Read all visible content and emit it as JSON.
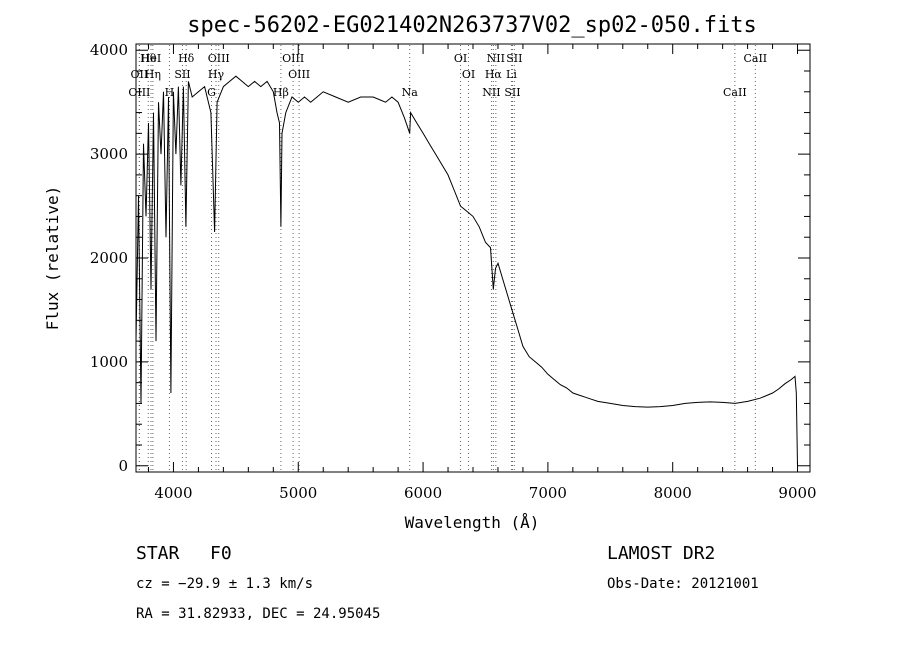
{
  "chart_data": {
    "type": "line",
    "title": "spec-56202-EG021402N263737V02_sp02-050.fits",
    "xlabel": "Wavelength (Å)",
    "ylabel": "Flux (relative)",
    "xlim": [
      3700,
      9100
    ],
    "ylim": [
      -60,
      4060
    ],
    "xticks": [
      4000,
      5000,
      6000,
      7000,
      8000,
      9000
    ],
    "yticks": [
      0,
      1000,
      2000,
      3000,
      4000
    ],
    "grid": false,
    "series": [
      {
        "color": "#000000",
        "x": [
          3700,
          3720,
          3740,
          3760,
          3780,
          3800,
          3820,
          3840,
          3860,
          3880,
          3900,
          3920,
          3940,
          3960,
          3980,
          4000,
          4020,
          4040,
          4060,
          4080,
          4100,
          4120,
          4150,
          4200,
          4250,
          4300,
          4330,
          4340,
          4350,
          4400,
          4450,
          4500,
          4550,
          4600,
          4650,
          4700,
          4750,
          4800,
          4830,
          4850,
          4861,
          4870,
          4900,
          4950,
          5000,
          5050,
          5100,
          5150,
          5200,
          5300,
          5400,
          5500,
          5600,
          5700,
          5750,
          5800,
          5850,
          5893,
          5900,
          5950,
          6000,
          6050,
          6100,
          6150,
          6200,
          6250,
          6300,
          6350,
          6400,
          6450,
          6500,
          6540,
          6563,
          6580,
          6600,
          6650,
          6700,
          6750,
          6800,
          6850,
          6900,
          6950,
          7000,
          7050,
          7100,
          7150,
          7200,
          7250,
          7300,
          7350,
          7400,
          7500,
          7600,
          7700,
          7800,
          7900,
          8000,
          8100,
          8200,
          8300,
          8400,
          8500,
          8600,
          8700,
          8800,
          8850,
          8900,
          8950,
          8980,
          8990,
          9000
        ],
        "y": [
          1200,
          2600,
          600,
          3100,
          2400,
          3300,
          1700,
          3400,
          1200,
          3500,
          3000,
          3600,
          2200,
          3550,
          700,
          3600,
          3000,
          3650,
          2700,
          3650,
          2300,
          3700,
          3550,
          3600,
          3650,
          3400,
          2250,
          2900,
          3500,
          3650,
          3700,
          3750,
          3700,
          3650,
          3700,
          3650,
          3700,
          3600,
          3400,
          3300,
          2300,
          3200,
          3400,
          3550,
          3500,
          3550,
          3500,
          3550,
          3600,
          3550,
          3500,
          3550,
          3550,
          3500,
          3550,
          3500,
          3350,
          3200,
          3400,
          3300,
          3200,
          3100,
          3000,
          2900,
          2800,
          2650,
          2500,
          2450,
          2400,
          2300,
          2150,
          2100,
          1700,
          1900,
          1950,
          1750,
          1550,
          1350,
          1150,
          1050,
          1000,
          950,
          880,
          830,
          780,
          750,
          700,
          680,
          660,
          640,
          620,
          600,
          580,
          570,
          565,
          570,
          580,
          600,
          610,
          615,
          610,
          600,
          620,
          650,
          700,
          740,
          790,
          830,
          860,
          700,
          0
        ]
      }
    ],
    "line_markers": [
      {
        "label": "Hθ",
        "x": 3798
      },
      {
        "label": "OII",
        "x": 3727
      },
      {
        "label": "OIII",
        "x": 3727
      },
      {
        "label": "HeI",
        "x": 3820
      },
      {
        "label": "Hη",
        "x": 3835
      },
      {
        "label": "H",
        "x": 3968
      },
      {
        "label": "Hδ",
        "x": 4102
      },
      {
        "label": "SII",
        "x": 4072
      },
      {
        "label": "G",
        "x": 4305
      },
      {
        "label": "OIII",
        "x": 4363
      },
      {
        "label": "Hγ",
        "x": 4341
      },
      {
        "label": "Hβ",
        "x": 4861
      },
      {
        "label": "OIII",
        "x": 4959
      },
      {
        "label": "OIII",
        "x": 5007
      },
      {
        "label": "Na",
        "x": 5893
      },
      {
        "label": "OI",
        "x": 6300
      },
      {
        "label": "OI",
        "x": 6364
      },
      {
        "label": "NII",
        "x": 6548
      },
      {
        "label": "NII",
        "x": 6583
      },
      {
        "label": "Hα",
        "x": 6563
      },
      {
        "label": "SII",
        "x": 6716
      },
      {
        "label": "SII",
        "x": 6731
      },
      {
        "label": "Li",
        "x": 6708
      },
      {
        "label": "CaII",
        "x": 8498
      },
      {
        "label": "CaII",
        "x": 8662
      }
    ]
  },
  "footer": {
    "object_class": "STAR",
    "subclass": "F0",
    "survey": "LAMOST DR2",
    "cz": "cz = −29.9 ± 1.3 km/s",
    "obs_date": "Obs-Date: 20121001",
    "coords": "RA =  31.82933, DEC =  24.95045"
  }
}
